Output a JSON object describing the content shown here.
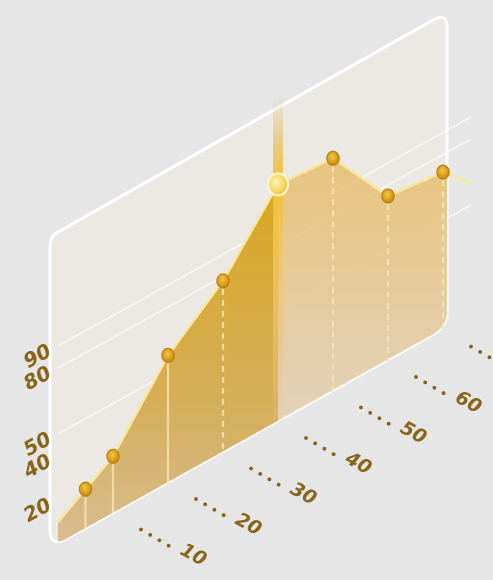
{
  "chart_data": {
    "type": "area",
    "x": [
      0,
      5,
      10,
      20,
      30,
      40,
      50,
      60,
      70,
      75
    ],
    "values": [
      10,
      18,
      26,
      58,
      78,
      108,
      106,
      75,
      72,
      60
    ],
    "highlight_index": 5,
    "highlight_split": {
      "before_color": "#d6a62c",
      "after_color": "#dcc6a2"
    },
    "x_ticks": [
      "10",
      "20",
      "30",
      "40",
      "50",
      "60",
      "70"
    ],
    "y_ticks": [
      "20",
      "40",
      "50",
      "80",
      "90"
    ],
    "gridlines": [
      "50",
      "80",
      "90"
    ],
    "grid": true
  }
}
